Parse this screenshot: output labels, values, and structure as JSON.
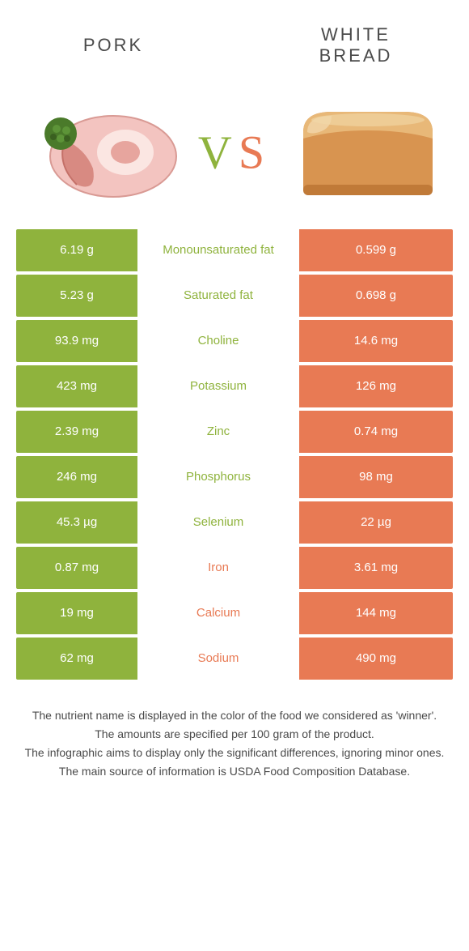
{
  "colors": {
    "left": "#8fb33d",
    "right": "#e87a54",
    "text": "#4a4a4a",
    "vs_left": "#8fb33d",
    "vs_right": "#e87a54"
  },
  "header": {
    "left_title": "PORK",
    "right_title_line1": "WHITE",
    "right_title_line2": "BREAD",
    "vs_label": "VS"
  },
  "rows": [
    {
      "label": "Monounsaturated fat",
      "left": "6.19 g",
      "right": "0.599 g",
      "winner": "left"
    },
    {
      "label": "Saturated fat",
      "left": "5.23 g",
      "right": "0.698 g",
      "winner": "left"
    },
    {
      "label": "Choline",
      "left": "93.9 mg",
      "right": "14.6 mg",
      "winner": "left"
    },
    {
      "label": "Potassium",
      "left": "423 mg",
      "right": "126 mg",
      "winner": "left"
    },
    {
      "label": "Zinc",
      "left": "2.39 mg",
      "right": "0.74 mg",
      "winner": "left"
    },
    {
      "label": "Phosphorus",
      "left": "246 mg",
      "right": "98 mg",
      "winner": "left"
    },
    {
      "label": "Selenium",
      "left": "45.3 µg",
      "right": "22 µg",
      "winner": "left"
    },
    {
      "label": "Iron",
      "left": "0.87 mg",
      "right": "3.61 mg",
      "winner": "right"
    },
    {
      "label": "Calcium",
      "left": "19 mg",
      "right": "144 mg",
      "winner": "right"
    },
    {
      "label": "Sodium",
      "left": "62 mg",
      "right": "490 mg",
      "winner": "right"
    }
  ],
  "notes": [
    "The nutrient name is displayed in the color of the food we considered as 'winner'.",
    "The amounts are specified per 100 gram of the product.",
    "The infographic aims to display only the significant differences, ignoring minor ones.",
    "The main source of information is USDA Food Composition Database."
  ]
}
